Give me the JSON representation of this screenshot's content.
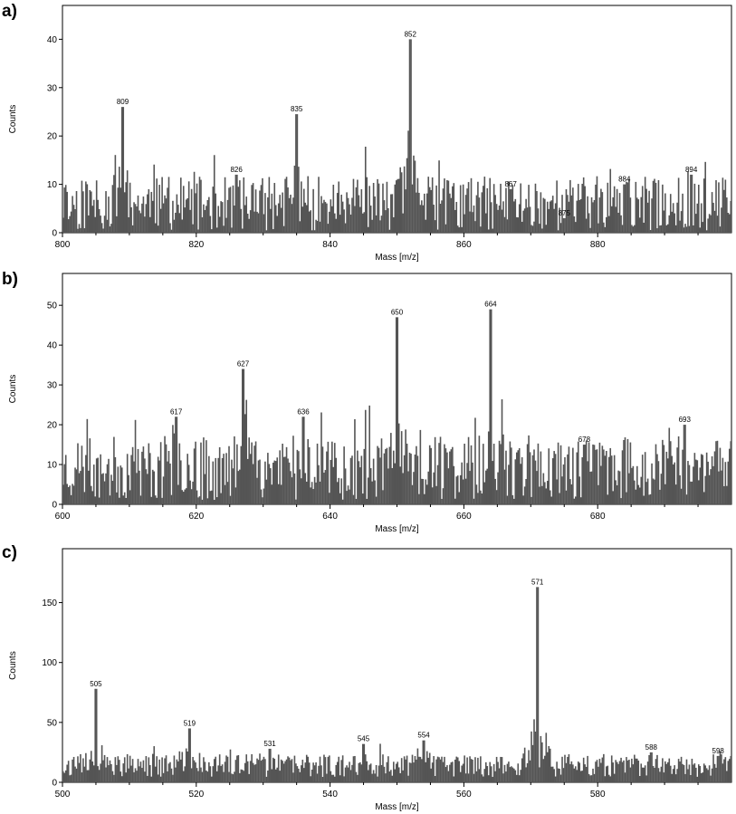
{
  "chart_data": [
    {
      "type": "bar",
      "panel_label": "a)",
      "xlabel": "Mass [m/z]",
      "ylabel": "Counts",
      "xlim": [
        800,
        900
      ],
      "ylim": [
        0,
        47
      ],
      "xticks": [
        800,
        820,
        840,
        860,
        880
      ],
      "yticks": [
        0,
        10,
        20,
        30,
        40
      ],
      "peaks": [
        {
          "x": 809,
          "y": 26,
          "label": "809"
        },
        {
          "x": 826,
          "y": 12,
          "label": "826"
        },
        {
          "x": 835,
          "y": 24.5,
          "label": "835"
        },
        {
          "x": 852,
          "y": 40,
          "label": "852"
        },
        {
          "x": 867,
          "y": 9,
          "label": "867"
        },
        {
          "x": 875,
          "y": 3,
          "label": "875"
        },
        {
          "x": 884,
          "y": 10,
          "label": "884"
        },
        {
          "x": 894,
          "y": 12,
          "label": "894"
        }
      ],
      "baseline": 6,
      "noise": 7
    },
    {
      "type": "bar",
      "panel_label": "b)",
      "xlabel": "Mass [m/z]",
      "ylabel": "Counts",
      "xlim": [
        600,
        700
      ],
      "ylim": [
        0,
        58
      ],
      "xticks": [
        600,
        620,
        640,
        660,
        680
      ],
      "yticks": [
        0,
        10,
        20,
        30,
        40,
        50
      ],
      "peaks": [
        {
          "x": 617,
          "y": 22,
          "label": "617"
        },
        {
          "x": 627,
          "y": 34,
          "label": "627"
        },
        {
          "x": 636,
          "y": 22,
          "label": "636"
        },
        {
          "x": 650,
          "y": 47,
          "label": "650"
        },
        {
          "x": 664,
          "y": 49,
          "label": "664"
        },
        {
          "x": 678,
          "y": 15,
          "label": "678"
        },
        {
          "x": 693,
          "y": 20,
          "label": "693"
        }
      ],
      "baseline": 9,
      "noise": 10
    },
    {
      "type": "bar",
      "panel_label": "c)",
      "xlabel": "Mass [m/z]",
      "ylabel": "Counts",
      "xlim": [
        500,
        600
      ],
      "ylim": [
        0,
        195
      ],
      "xticks": [
        500,
        520,
        540,
        560,
        580
      ],
      "yticks": [
        0,
        50,
        100,
        150
      ],
      "peaks": [
        {
          "x": 505,
          "y": 78,
          "label": "505"
        },
        {
          "x": 519,
          "y": 45,
          "label": "519"
        },
        {
          "x": 531,
          "y": 28,
          "label": "531"
        },
        {
          "x": 545,
          "y": 32,
          "label": "545"
        },
        {
          "x": 554,
          "y": 35,
          "label": "554"
        },
        {
          "x": 571,
          "y": 163,
          "label": "571"
        },
        {
          "x": 588,
          "y": 25,
          "label": "588"
        },
        {
          "x": 598,
          "y": 22,
          "label": "598"
        }
      ],
      "baseline": 14,
      "noise": 12
    }
  ]
}
